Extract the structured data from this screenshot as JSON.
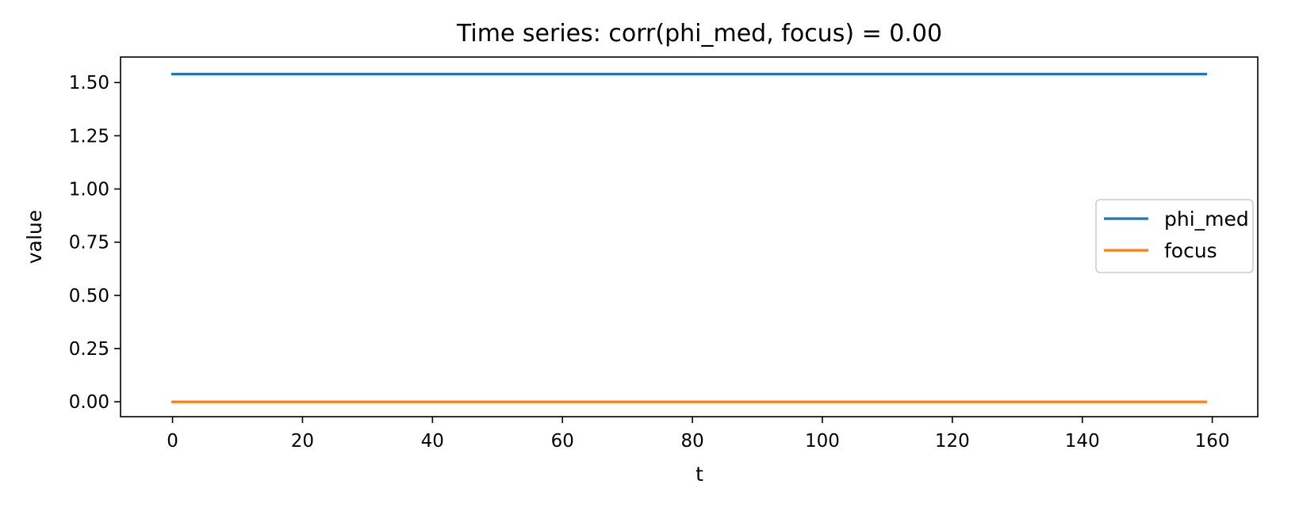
{
  "chart_data": {
    "type": "line",
    "title": "Time series: corr(phi_med, focus) = 0.00",
    "xlabel": "t",
    "ylabel": "value",
    "xlim": [
      -8,
      167
    ],
    "ylim": [
      -0.07,
      1.62
    ],
    "xticks": [
      0,
      20,
      40,
      60,
      80,
      100,
      120,
      140,
      160
    ],
    "xtick_labels": [
      "0",
      "20",
      "40",
      "60",
      "80",
      "100",
      "120",
      "140",
      "160"
    ],
    "yticks": [
      0,
      0.25,
      0.5,
      0.75,
      1.0,
      1.25,
      1.5
    ],
    "ytick_labels": [
      "0.00",
      "0.25",
      "0.50",
      "0.75",
      "1.00",
      "1.25",
      "1.50"
    ],
    "grid": false,
    "legend_position": "center-right",
    "series": [
      {
        "name": "phi_med",
        "color": "#1f77b4",
        "x": [
          0,
          159
        ],
        "y": [
          1.54,
          1.54
        ]
      },
      {
        "name": "focus",
        "color": "#ff7f0e",
        "x": [
          0,
          159
        ],
        "y": [
          0.0,
          0.0
        ]
      }
    ]
  }
}
